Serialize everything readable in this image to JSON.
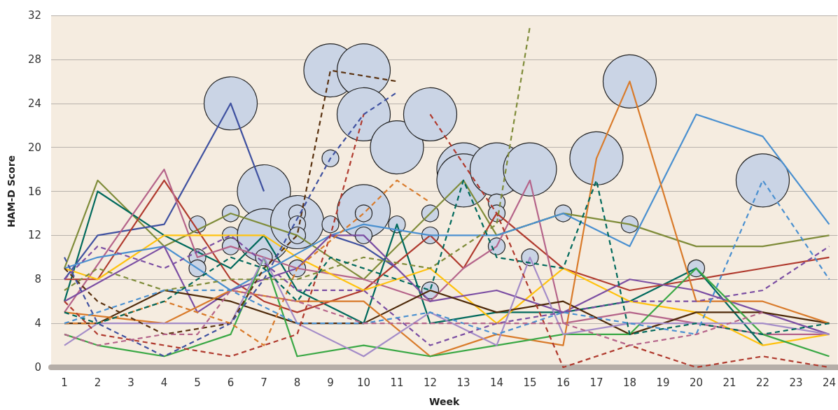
{
  "chart_data": {
    "type": "line",
    "xlabel": "Week",
    "ylabel": "HAM-D Score",
    "xlim": [
      0.6,
      24.25
    ],
    "xticks": [
      1,
      2,
      3,
      4,
      5,
      6,
      7,
      8,
      9,
      10,
      11,
      12,
      13,
      14,
      15,
      16,
      17,
      18,
      19,
      20,
      21,
      22,
      23,
      24
    ],
    "ylim": [
      0,
      32
    ],
    "yticks": [
      0,
      4,
      8,
      12,
      16,
      20,
      24,
      28,
      32
    ],
    "grid": "y",
    "marker": "none",
    "series": [
      {
        "color": "#7f8c3a",
        "line_style": "solid",
        "x": [
          1,
          2,
          4,
          6,
          8,
          10,
          12,
          13,
          14,
          16,
          18,
          20,
          22,
          24
        ],
        "values": [
          9,
          17,
          11,
          14,
          12,
          8,
          14,
          17,
          12,
          14,
          13,
          11,
          11,
          12
        ]
      },
      {
        "color": "#00695c",
        "line_style": "solid",
        "x": [
          1,
          2,
          4,
          6,
          7,
          8,
          10,
          11,
          12,
          14,
          16,
          18,
          20,
          22
        ],
        "values": [
          6,
          16,
          12,
          9,
          12,
          7,
          4,
          13,
          4,
          5,
          5,
          6,
          9,
          2
        ]
      },
      {
        "color": "#3f51a0",
        "line_style": "solid",
        "x": [
          1,
          2,
          4,
          6,
          7
        ],
        "values": [
          8,
          12,
          13,
          24,
          16
        ]
      },
      {
        "color": "#3f51a0",
        "line_style": "solid",
        "x": [
          9,
          10,
          11
        ],
        "values": [
          12,
          11,
          9
        ]
      },
      {
        "color": "#b03a2e",
        "line_style": "solid",
        "x": [
          1,
          2,
          4,
          6,
          7,
          8,
          10,
          12,
          13,
          14,
          16,
          18,
          20,
          22,
          24
        ],
        "values": [
          8,
          8,
          17,
          8,
          6,
          5,
          7,
          12,
          9,
          14,
          9,
          7,
          8,
          9,
          10
        ]
      },
      {
        "color": "#b5648a",
        "line_style": "solid",
        "x": [
          1,
          4,
          5,
          6,
          7,
          8,
          10,
          12,
          13,
          14,
          15,
          16,
          18,
          20,
          22,
          24
        ],
        "values": [
          5,
          18,
          10,
          11,
          10,
          9,
          8,
          6,
          9,
          11,
          17,
          4,
          5,
          4,
          3,
          3
        ]
      },
      {
        "color": "#ffc20e",
        "line_style": "solid",
        "x": [
          1,
          2,
          4,
          6,
          7,
          8,
          10,
          12,
          14,
          16,
          18,
          20,
          22,
          24
        ],
        "values": [
          9,
          8,
          12,
          12,
          12,
          10,
          7,
          9,
          4,
          9,
          6,
          5,
          2,
          3
        ]
      },
      {
        "color": "#4a90d0",
        "line_style": "solid",
        "x": [
          1,
          2,
          4,
          6,
          9,
          10,
          12,
          14,
          16,
          18,
          20,
          22,
          24
        ],
        "values": [
          9,
          10,
          11,
          7,
          12,
          13,
          12,
          12,
          14,
          11,
          23,
          21,
          13
        ]
      },
      {
        "color": "#7b4ea3",
        "line_style": "solid",
        "x": [
          1,
          4,
          5,
          6,
          7,
          8,
          9,
          10,
          12,
          14,
          16,
          18,
          20,
          22,
          24
        ],
        "values": [
          6,
          11,
          5,
          7,
          8,
          9,
          12,
          12,
          6,
          7,
          5,
          8,
          7,
          5,
          3
        ]
      },
      {
        "color": "#4e2a0a",
        "line_style": "solid",
        "x": [
          1,
          2,
          4,
          6,
          8,
          10,
          12,
          14,
          16,
          18,
          20,
          22,
          24
        ],
        "values": [
          4,
          4,
          7,
          6,
          4,
          4,
          7,
          5,
          6,
          3,
          5,
          5,
          4
        ]
      },
      {
        "color": "#d97b2b",
        "line_style": "solid",
        "x": [
          1,
          4,
          6,
          8,
          10,
          12,
          14,
          16,
          17,
          18,
          20,
          22,
          24
        ],
        "values": [
          5,
          4,
          7,
          6,
          6,
          1,
          3,
          2,
          19,
          26,
          6,
          6,
          4
        ]
      },
      {
        "color": "#3aa845",
        "line_style": "solid",
        "x": [
          1,
          2,
          4,
          6,
          7,
          8,
          10,
          12,
          14,
          16,
          18,
          20,
          22,
          24
        ],
        "values": [
          3,
          2,
          1,
          3,
          10,
          1,
          2,
          1,
          2,
          3,
          3,
          9,
          3,
          1
        ]
      },
      {
        "color": "#a48cc8",
        "line_style": "solid",
        "x": [
          1,
          2,
          4,
          6,
          7,
          8,
          10,
          12,
          14,
          15,
          16,
          18,
          20,
          22,
          24
        ],
        "values": [
          2,
          4,
          4,
          4,
          10,
          4,
          1,
          5,
          2,
          10,
          3,
          4,
          4,
          4,
          3
        ]
      },
      {
        "color": "#5a3210",
        "line_style": "dashed",
        "x": [
          1,
          2,
          4,
          6,
          7,
          8,
          9,
          11
        ],
        "values": [
          9,
          6,
          3,
          4,
          9,
          12,
          27,
          26
        ]
      },
      {
        "color": "#3f51a0",
        "line_style": "dashed",
        "x": [
          1,
          2,
          4,
          6,
          7,
          9,
          10,
          11
        ],
        "values": [
          10,
          4,
          1,
          4,
          8,
          19,
          23,
          25
        ]
      },
      {
        "color": "#b03a2e",
        "line_style": "dashed",
        "x": [
          1,
          2,
          4,
          6,
          7,
          8,
          9,
          10
        ],
        "values": [
          6,
          3,
          2,
          1,
          2,
          3,
          12,
          23
        ]
      },
      {
        "color": "#b03a2e",
        "line_style": "dashed",
        "x": [
          12,
          14,
          16,
          18,
          20,
          22,
          24
        ],
        "values": [
          23,
          14,
          0,
          2,
          0,
          1,
          0
        ]
      },
      {
        "color": "#d97b2b",
        "line_style": "dashed",
        "x": [
          1,
          2,
          4,
          6,
          7,
          8,
          10,
          11,
          12
        ],
        "values": [
          4,
          4,
          6,
          4,
          2,
          9,
          14,
          17,
          15
        ]
      },
      {
        "color": "#7f8c3a",
        "line_style": "dashed",
        "x": [
          1,
          2,
          4,
          6,
          8,
          10,
          12,
          14,
          15
        ],
        "values": [
          7,
          9,
          7,
          8,
          8,
          10,
          9,
          13,
          31
        ]
      },
      {
        "color": "#00695c",
        "line_style": "dashed",
        "x": [
          1,
          2,
          4,
          6,
          7,
          8,
          9,
          12,
          13,
          14,
          16,
          17,
          18,
          20,
          22,
          24
        ],
        "values": [
          5,
          4,
          6,
          10,
          9,
          6,
          10,
          7,
          17,
          10,
          9,
          17,
          3,
          4,
          3,
          4
        ]
      },
      {
        "color": "#7b4ea3",
        "line_style": "dashed",
        "x": [
          1,
          2,
          4,
          6,
          8,
          10,
          12,
          14,
          16,
          18,
          20,
          22,
          24
        ],
        "values": [
          8,
          11,
          9,
          12,
          7,
          7,
          2,
          4,
          5,
          6,
          6,
          7,
          11
        ]
      },
      {
        "color": "#4a90d0",
        "line_style": "dashed",
        "x": [
          1,
          4,
          6,
          8,
          10,
          12,
          14,
          16,
          18,
          20,
          22,
          24
        ],
        "values": [
          4,
          7,
          7,
          4,
          4,
          5,
          3,
          5,
          4,
          3,
          17,
          8
        ]
      },
      {
        "color": "#b5648a",
        "line_style": "dashed",
        "x": [
          1,
          2,
          4,
          5,
          6,
          8,
          10,
          12,
          14,
          16,
          18,
          20,
          22
        ],
        "values": [
          3,
          2,
          3,
          3,
          7,
          6,
          4,
          4,
          4,
          4,
          2,
          3,
          5
        ]
      },
      {
        "type": "bubble",
        "color": "#cad4e5",
        "marker": "circle",
        "x": [
          5,
          5,
          5,
          6,
          6,
          6,
          6,
          7,
          7,
          7,
          8,
          8,
          8,
          8,
          8,
          9,
          9,
          9,
          10,
          10,
          10,
          10,
          10,
          11,
          11,
          12,
          12,
          12,
          12,
          13,
          13,
          14,
          14,
          14,
          14,
          15,
          15,
          16,
          17,
          18,
          18,
          20,
          22
        ],
        "values": [
          13,
          10,
          9,
          24,
          14,
          12,
          11,
          16,
          12,
          10,
          13.2,
          14,
          13,
          12,
          9,
          27,
          19,
          13,
          27,
          23,
          14.2,
          14,
          12,
          20,
          13,
          23,
          14,
          12,
          7,
          18,
          17,
          18,
          15,
          14,
          11,
          18,
          10,
          14,
          19,
          26,
          13,
          9,
          17
        ],
        "sizes": [
          0.1,
          0.1,
          0.1,
          1,
          0.1,
          0.1,
          0.1,
          1,
          1,
          0.1,
          1,
          0.1,
          0.1,
          0.1,
          0.1,
          1,
          0.1,
          0.1,
          1,
          1,
          1,
          0.1,
          0.1,
          1,
          0.1,
          1,
          0.1,
          0.1,
          0.1,
          1,
          1,
          1,
          0.1,
          0.1,
          0.1,
          1,
          0.1,
          0.1,
          1,
          1,
          0.1,
          0.1,
          1
        ]
      }
    ]
  }
}
